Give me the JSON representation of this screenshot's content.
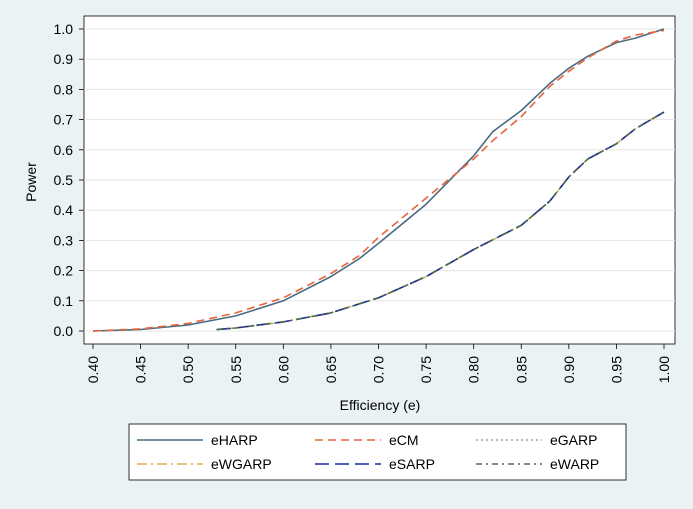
{
  "chart_data": {
    "type": "line",
    "title": "",
    "xlabel": "Efficiency (e)",
    "ylabel": "Power",
    "xlim": [
      0.4,
      1.0
    ],
    "ylim": [
      0.0,
      1.0
    ],
    "x_ticks": [
      "0.40",
      "0.45",
      "0.50",
      "0.55",
      "0.60",
      "0.65",
      "0.70",
      "0.75",
      "0.80",
      "0.85",
      "0.90",
      "0.95",
      "1.00"
    ],
    "y_ticks": [
      "0.0",
      "0.1",
      "0.2",
      "0.3",
      "0.4",
      "0.5",
      "0.6",
      "0.7",
      "0.8",
      "0.9",
      "1.0"
    ],
    "grid": true,
    "legend_position": "bottom",
    "series": [
      {
        "name": "eHARP",
        "color": "#4a6b82",
        "dash": "solid",
        "x": [
          0.4,
          0.45,
          0.5,
          0.55,
          0.6,
          0.65,
          0.68,
          0.7,
          0.75,
          0.8,
          0.82,
          0.85,
          0.88,
          0.9,
          0.92,
          0.95,
          0.97,
          1.0
        ],
        "y": [
          0.0,
          0.005,
          0.02,
          0.05,
          0.1,
          0.18,
          0.24,
          0.29,
          0.42,
          0.58,
          0.66,
          0.73,
          0.82,
          0.87,
          0.91,
          0.955,
          0.97,
          1.0
        ]
      },
      {
        "name": "eCM",
        "color": "#e8643a",
        "dash": "dashed",
        "x": [
          0.4,
          0.45,
          0.5,
          0.55,
          0.6,
          0.65,
          0.68,
          0.7,
          0.75,
          0.8,
          0.82,
          0.85,
          0.88,
          0.9,
          0.92,
          0.95,
          0.97,
          1.0
        ],
        "y": [
          0.0,
          0.007,
          0.025,
          0.06,
          0.11,
          0.19,
          0.25,
          0.31,
          0.44,
          0.57,
          0.63,
          0.71,
          0.81,
          0.86,
          0.905,
          0.96,
          0.98,
          0.995
        ]
      },
      {
        "name": "eGARP",
        "color": "#a0a0a0",
        "dash": "dotted",
        "x": [
          0.53,
          0.55,
          0.6,
          0.65,
          0.68,
          0.7,
          0.75,
          0.8,
          0.85,
          0.88,
          0.9,
          0.92,
          0.95,
          0.97,
          1.0
        ],
        "y": [
          0.005,
          0.01,
          0.03,
          0.06,
          0.09,
          0.11,
          0.18,
          0.27,
          0.35,
          0.43,
          0.51,
          0.57,
          0.62,
          0.67,
          0.725
        ]
      },
      {
        "name": "eWGARP",
        "color": "#e0b050",
        "dash": "dashdot",
        "x": [
          0.53,
          0.55,
          0.6,
          0.65,
          0.68,
          0.7,
          0.75,
          0.8,
          0.85,
          0.88,
          0.9,
          0.92,
          0.95,
          0.97,
          1.0
        ],
        "y": [
          0.005,
          0.01,
          0.03,
          0.06,
          0.09,
          0.11,
          0.18,
          0.27,
          0.35,
          0.43,
          0.51,
          0.57,
          0.62,
          0.67,
          0.725
        ]
      },
      {
        "name": "eSARP",
        "color": "#1a2aa8",
        "dash": "longdash",
        "x": [
          0.53,
          0.55,
          0.6,
          0.65,
          0.68,
          0.7,
          0.75,
          0.8,
          0.85,
          0.88,
          0.9,
          0.92,
          0.95,
          0.97,
          1.0
        ],
        "y": [
          0.005,
          0.01,
          0.03,
          0.06,
          0.09,
          0.11,
          0.18,
          0.27,
          0.35,
          0.43,
          0.51,
          0.57,
          0.62,
          0.67,
          0.725
        ]
      },
      {
        "name": "eWARP",
        "color": "#4a6b48",
        "dash": "dashdot2",
        "x": [
          0.53,
          0.55,
          0.6,
          0.65,
          0.68,
          0.7,
          0.75,
          0.8,
          0.85,
          0.88,
          0.9,
          0.92,
          0.95,
          0.97,
          1.0
        ],
        "y": [
          0.005,
          0.01,
          0.03,
          0.06,
          0.09,
          0.11,
          0.18,
          0.27,
          0.35,
          0.43,
          0.51,
          0.57,
          0.62,
          0.67,
          0.725
        ]
      }
    ]
  }
}
